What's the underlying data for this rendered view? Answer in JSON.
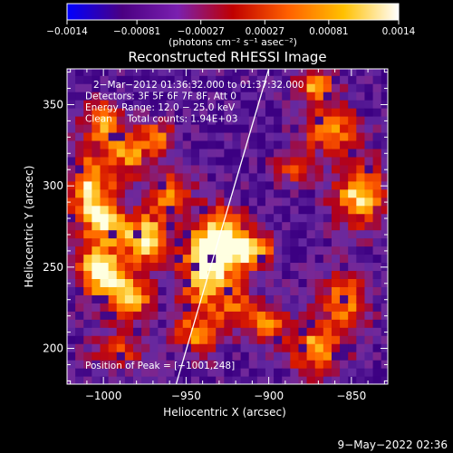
{
  "chart_data": {
    "type": "heatmap",
    "title": "Reconstructed RHESSI Image",
    "xlabel": "Heliocentric X (arcsec)",
    "ylabel": "Heliocentric Y (arcsec)",
    "xlim": [
      -1022,
      -828
    ],
    "ylim": [
      178,
      372
    ],
    "x_ticks": [
      -1000,
      -950,
      -900,
      -850
    ],
    "y_ticks": [
      200,
      250,
      300,
      350
    ],
    "x_tick_labels": [
      "−1000",
      "−950",
      "−900",
      "−850"
    ],
    "y_tick_labels": [
      "200",
      "250",
      "300",
      "350"
    ],
    "colorbar": {
      "min": -0.0014,
      "max": 0.0014,
      "ticks": [
        -0.0014,
        -0.00081,
        -0.00027,
        0.00027,
        0.00081,
        0.0014
      ],
      "tick_labels": [
        "−0.0014",
        "−0.00081",
        "−0.00027",
        "0.00027",
        "0.00081",
        "0.0014"
      ],
      "unit_label": "(photons cm⁻² s⁻¹ asec⁻²)",
      "colors": [
        "#0000ff",
        "#4b0082",
        "#7a1fb0",
        "#c00000",
        "#ff6000",
        "#ffc000",
        "#ffffff"
      ]
    },
    "annotations": [
      "2−Mar−2012 01:36:32.000 to 01:37:32.000",
      "Detectors: 3F 5F 6F 7F 8F, Att 0",
      "Energy Range: 12.0 − 25.0 keV",
      "Clean     Total counts: 1.94E+03"
    ],
    "peak_label": "Position of Peak = [−1001,248]",
    "peak": {
      "x": -1001,
      "y": 248
    },
    "limb_line": {
      "x": [
        -956,
        -900
      ],
      "y": [
        178,
        372
      ]
    },
    "grid_step": 5,
    "hotspots": [
      {
        "x": -930,
        "y": 266,
        "amp": 1.0,
        "sx": 11,
        "sy": 14
      },
      {
        "x": -910,
        "y": 260,
        "amp": 0.8,
        "sx": 9,
        "sy": 8
      },
      {
        "x": -940,
        "y": 245,
        "amp": 0.75,
        "sx": 10,
        "sy": 14
      },
      {
        "x": -975,
        "y": 268,
        "amp": 0.95,
        "sx": 10,
        "sy": 10
      },
      {
        "x": -1002,
        "y": 248,
        "amp": 1.0,
        "sx": 10,
        "sy": 10
      },
      {
        "x": -985,
        "y": 232,
        "amp": 0.85,
        "sx": 10,
        "sy": 10
      },
      {
        "x": -1000,
        "y": 278,
        "amp": 0.7,
        "sx": 9,
        "sy": 10
      },
      {
        "x": -1008,
        "y": 300,
        "amp": 0.75,
        "sx": 10,
        "sy": 15
      },
      {
        "x": -985,
        "y": 320,
        "amp": 0.6,
        "sx": 9,
        "sy": 10
      },
      {
        "x": -1000,
        "y": 340,
        "amp": 0.7,
        "sx": 8,
        "sy": 9
      },
      {
        "x": -960,
        "y": 295,
        "amp": 0.65,
        "sx": 9,
        "sy": 9
      },
      {
        "x": -968,
        "y": 330,
        "amp": 0.55,
        "sx": 8,
        "sy": 7
      },
      {
        "x": -945,
        "y": 208,
        "amp": 0.6,
        "sx": 9,
        "sy": 10
      },
      {
        "x": -920,
        "y": 225,
        "amp": 0.55,
        "sx": 10,
        "sy": 10
      },
      {
        "x": -990,
        "y": 198,
        "amp": 0.45,
        "sx": 12,
        "sy": 8
      },
      {
        "x": -845,
        "y": 295,
        "amp": 0.8,
        "sx": 11,
        "sy": 14
      },
      {
        "x": -862,
        "y": 335,
        "amp": 0.7,
        "sx": 12,
        "sy": 10
      },
      {
        "x": -872,
        "y": 362,
        "amp": 0.65,
        "sx": 9,
        "sy": 8
      },
      {
        "x": -853,
        "y": 230,
        "amp": 0.65,
        "sx": 10,
        "sy": 12
      },
      {
        "x": -872,
        "y": 200,
        "amp": 0.7,
        "sx": 12,
        "sy": 12
      },
      {
        "x": -885,
        "y": 312,
        "amp": 0.5,
        "sx": 8,
        "sy": 8
      },
      {
        "x": -900,
        "y": 215,
        "amp": 0.55,
        "sx": 8,
        "sy": 8
      }
    ]
  },
  "footer": {
    "date_stamp": "9−May−2022 02:36"
  }
}
